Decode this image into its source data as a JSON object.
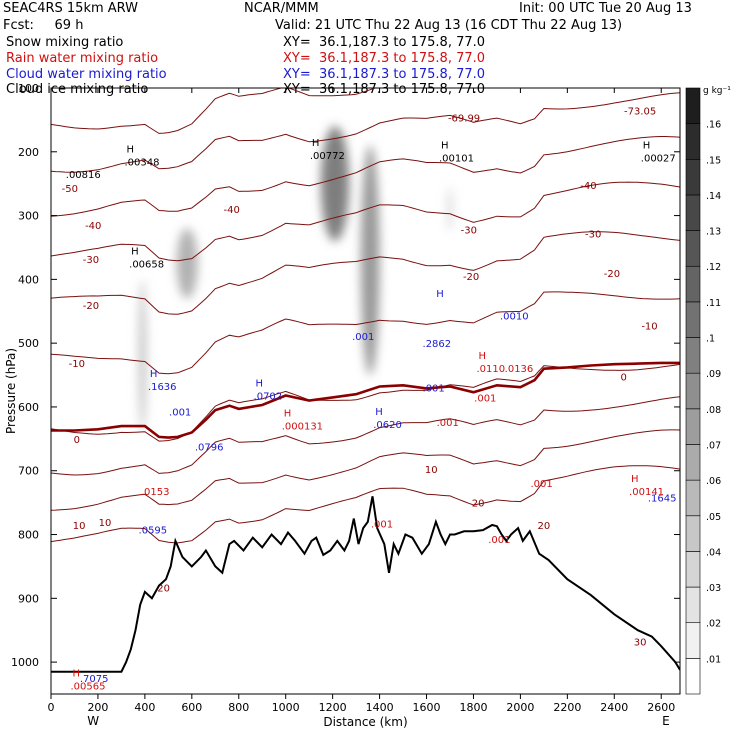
{
  "header": {
    "model": "SEAC4RS 15km ARW",
    "org": "NCAR/MMM",
    "init": "Init: 00 UTC Tue 20 Aug 13",
    "fcst": "Fcst:     69 h",
    "valid": "Valid: 21 UTC Thu 22 Aug 13 (16 CDT Thu 22 Aug 13)"
  },
  "fields": [
    {
      "name": "Snow mixing ratio",
      "xy": "XY=  36.1,187.3 to 175.8, 77.0",
      "color": "#000000"
    },
    {
      "name": "Rain water mixing ratio",
      "xy": "XY=  36.1,187.3 to 175.8, 77.0",
      "color": "#d01010"
    },
    {
      "name": "Cloud water mixing ratio",
      "xy": "XY=  36.1,187.3 to 175.8, 77.0",
      "color": "#1a1ad0"
    },
    {
      "name": "Cloud ice mixing ratio",
      "xy": "XY=  36.1,187.3 to 175.8, 77.0",
      "color": "#000000"
    }
  ],
  "chart_data": {
    "type": "cross-section",
    "xlabel": "Distance (km)",
    "ylabel": "Pressure (hPa)",
    "xlim": [
      0,
      2680
    ],
    "ylim": [
      1050,
      100
    ],
    "x_ticks": [
      "0",
      "200",
      "400",
      "600",
      "800",
      "1000",
      "1200",
      "1400",
      "1600",
      "1800",
      "2000",
      "2200",
      "2400",
      "2600"
    ],
    "y_ticks": [
      "100",
      "200",
      "300",
      "400",
      "500",
      "600",
      "700",
      "800",
      "900",
      "1000"
    ],
    "end_labels": {
      "left": "W",
      "right": "E"
    },
    "colorbar": {
      "unit": "g kg⁻¹",
      "levels": [
        ".01",
        ".02",
        ".03",
        ".04",
        ".05",
        ".06",
        ".07",
        ".08",
        ".09",
        ".1",
        ".11",
        ".12",
        ".13",
        ".14",
        ".15",
        ".16"
      ]
    },
    "terrain": {
      "x": [
        0,
        300,
        320,
        340,
        360,
        380,
        400,
        430,
        460,
        490,
        510,
        520,
        530,
        560,
        600,
        640,
        660,
        700,
        730,
        760,
        780,
        820,
        860,
        900,
        940,
        980,
        1010,
        1040,
        1080,
        1110,
        1130,
        1160,
        1190,
        1220,
        1250,
        1270,
        1290,
        1310,
        1330,
        1350,
        1370,
        1390,
        1420,
        1440,
        1460,
        1480,
        1510,
        1540,
        1580,
        1610,
        1640,
        1660,
        1680,
        1700,
        1720,
        1760,
        1800,
        1840,
        1880,
        1900,
        1920,
        1940,
        1960,
        1990,
        2010,
        2040,
        2080,
        2120,
        2200,
        2300,
        2400,
        2500,
        2560,
        2600,
        2660,
        2680
      ],
      "p": [
        1015,
        1015,
        1000,
        980,
        950,
        910,
        890,
        900,
        880,
        870,
        850,
        830,
        810,
        835,
        850,
        835,
        825,
        850,
        860,
        815,
        810,
        825,
        805,
        820,
        800,
        815,
        797,
        810,
        830,
        810,
        805,
        832,
        825,
        810,
        825,
        810,
        775,
        815,
        790,
        780,
        740,
        790,
        815,
        860,
        815,
        830,
        800,
        805,
        830,
        815,
        780,
        800,
        815,
        800,
        800,
        795,
        795,
        793,
        785,
        787,
        800,
        810,
        800,
        790,
        810,
        795,
        830,
        840,
        870,
        895,
        925,
        950,
        960,
        975,
        1000,
        1012
      ]
    },
    "freezing_level": {
      "x": [
        0,
        100,
        200,
        300,
        400,
        460,
        500,
        540,
        600,
        660,
        700,
        760,
        800,
        900,
        1000,
        1100,
        1200,
        1300,
        1400,
        1500,
        1600,
        1700,
        1800,
        1900,
        2000,
        2060,
        2100,
        2200,
        2300,
        2400,
        2500,
        2600,
        2680
      ],
      "p": [
        637,
        637,
        635,
        630,
        630,
        647,
        648,
        647,
        640,
        620,
        605,
        598,
        603,
        597,
        582,
        590,
        585,
        580,
        568,
        566,
        571,
        568,
        577,
        566,
        569,
        558,
        540,
        538,
        535,
        533,
        532,
        531,
        531
      ]
    },
    "temp_contour_labels": [
      {
        "x": 80,
        "p": 257,
        "label": "-50"
      },
      {
        "x": 180,
        "p": 315,
        "label": "-40"
      },
      {
        "x": 770,
        "p": 290,
        "label": "-40"
      },
      {
        "x": 2290,
        "p": 252,
        "label": "-40"
      },
      {
        "x": 170,
        "p": 368,
        "label": "-30"
      },
      {
        "x": 1780,
        "p": 322,
        "label": "-30"
      },
      {
        "x": 2310,
        "p": 328,
        "label": "-30"
      },
      {
        "x": 170,
        "p": 440,
        "label": "-20"
      },
      {
        "x": 1790,
        "p": 395,
        "label": "-20"
      },
      {
        "x": 2390,
        "p": 390,
        "label": "-20"
      },
      {
        "x": 110,
        "p": 531,
        "label": "-10"
      },
      {
        "x": 2550,
        "p": 472,
        "label": "-10"
      },
      {
        "x": 110,
        "p": 650,
        "label": "0"
      },
      {
        "x": 2440,
        "p": 552,
        "label": "0"
      },
      {
        "x": 1620,
        "p": 697,
        "label": "10"
      },
      {
        "x": 120,
        "p": 785,
        "label": "10"
      },
      {
        "x": 230,
        "p": 780,
        "label": "10"
      },
      {
        "x": 1820,
        "p": 750,
        "label": "20"
      },
      {
        "x": 2100,
        "p": 785,
        "label": "20"
      },
      {
        "x": 480,
        "p": 883,
        "label": "20"
      },
      {
        "x": 2510,
        "p": 968,
        "label": "30"
      },
      {
        "x": 2510,
        "p": 135,
        "label": "-73.05"
      },
      {
        "x": 1760,
        "p": 146,
        "label": "-69.99"
      }
    ],
    "annotations": [
      {
        "x": 330,
        "p": 218,
        "marker": "H",
        "value": ".00348",
        "color": "#000000"
      },
      {
        "x": 80,
        "p": 238,
        "marker": "",
        "value": ".00816",
        "color": "#000000"
      },
      {
        "x": 1120,
        "p": 208,
        "marker": "H",
        "value": ".00772",
        "color": "#000000"
      },
      {
        "x": 1670,
        "p": 212,
        "marker": "H",
        "value": ".00101",
        "color": "#000000"
      },
      {
        "x": 2530,
        "p": 212,
        "marker": "H",
        "value": ".00027",
        "color": "#000000"
      },
      {
        "x": 350,
        "p": 378,
        "marker": "H",
        "value": ".00658",
        "color": "#000000"
      },
      {
        "x": 1650,
        "p": 445,
        "marker": "H",
        "value": "",
        "color": "#1a1ad0"
      },
      {
        "x": 1930,
        "p": 460,
        "marker": "",
        "value": ".0010",
        "color": "#1a1ad0"
      },
      {
        "x": 1300,
        "p": 492,
        "marker": "",
        "value": ".001",
        "color": "#1a1ad0"
      },
      {
        "x": 1600,
        "p": 503,
        "marker": "",
        "value": ".2862",
        "color": "#1a1ad0"
      },
      {
        "x": 430,
        "p": 570,
        "marker": "H",
        "value": ".1636",
        "color": "#1a1ad0"
      },
      {
        "x": 880,
        "p": 585,
        "marker": "H",
        "value": ".0702",
        "color": "#1a1ad0"
      },
      {
        "x": 1600,
        "p": 573,
        "marker": "",
        "value": ".001",
        "color": "#1a1ad0"
      },
      {
        "x": 520,
        "p": 610,
        "marker": "",
        "value": ".001",
        "color": "#1a1ad0"
      },
      {
        "x": 1390,
        "p": 630,
        "marker": "H",
        "value": ".0620",
        "color": "#1a1ad0"
      },
      {
        "x": 630,
        "p": 665,
        "marker": "",
        "value": ".0796",
        "color": "#1a1ad0"
      },
      {
        "x": 2560,
        "p": 745,
        "marker": "",
        "value": ".1645",
        "color": "#1a1ad0"
      },
      {
        "x": 390,
        "p": 795,
        "marker": "",
        "value": ".0595",
        "color": "#1a1ad0"
      },
      {
        "x": 140,
        "p": 1028,
        "marker": "",
        "value": ".7075",
        "color": "#1a1ad0"
      },
      {
        "x": 1830,
        "p": 542,
        "marker": "H",
        "value": ".0110",
        "color": "#d01010"
      },
      {
        "x": 1950,
        "p": 542,
        "marker": "",
        "value": ".0136",
        "color": "#d01010"
      },
      {
        "x": 1820,
        "p": 588,
        "marker": "",
        "value": ".001",
        "color": "#d01010"
      },
      {
        "x": 1000,
        "p": 632,
        "marker": "H",
        "value": ".000131",
        "color": "#d01010"
      },
      {
        "x": 1660,
        "p": 627,
        "marker": "",
        "value": ".001",
        "color": "#d01010"
      },
      {
        "x": 2060,
        "p": 722,
        "marker": "",
        "value": ".001",
        "color": "#d01010"
      },
      {
        "x": 400,
        "p": 735,
        "marker": "",
        "value": ".0153",
        "color": "#d01010"
      },
      {
        "x": 2480,
        "p": 735,
        "marker": "H",
        "value": ".00141",
        "color": "#d01010"
      },
      {
        "x": 1380,
        "p": 786,
        "marker": "",
        "value": ".001",
        "color": "#d01010"
      },
      {
        "x": 1880,
        "p": 810,
        "marker": "",
        "value": ".001",
        "color": "#d01010"
      },
      {
        "x": 100,
        "p": 1040,
        "marker": "H",
        "value": ".00565",
        "color": "#d01010"
      }
    ],
    "shaded_regions": [
      {
        "x": 580,
        "p": 375,
        "rx": 45,
        "rp": 55,
        "level": 0.06
      },
      {
        "x": 1210,
        "p": 250,
        "rx": 60,
        "rp": 90,
        "level": 0.1
      },
      {
        "x": 1360,
        "p": 370,
        "rx": 40,
        "rp": 180,
        "level": 0.08
      },
      {
        "x": 390,
        "p": 520,
        "rx": 15,
        "rp": 120,
        "level": 0.05
      },
      {
        "x": 1700,
        "p": 290,
        "rx": 12,
        "rp": 35,
        "level": 0.03
      }
    ]
  }
}
